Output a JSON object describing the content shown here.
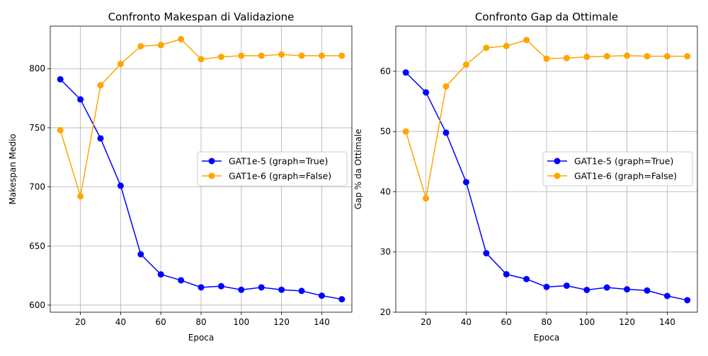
{
  "chart_data": [
    {
      "type": "line",
      "title": "Confronto Makespan di Validazione",
      "xlabel": "Epoca",
      "ylabel": "Makespan Medio",
      "x": [
        10,
        20,
        30,
        40,
        50,
        60,
        70,
        80,
        90,
        100,
        110,
        120,
        130,
        140,
        150
      ],
      "xlim": [
        5,
        155
      ],
      "ylim": [
        594,
        836
      ],
      "xticks": [
        20,
        40,
        60,
        80,
        100,
        120,
        140
      ],
      "yticks": [
        600,
        650,
        700,
        750,
        800
      ],
      "grid": true,
      "legend_position": "center-right",
      "series": [
        {
          "name": "GAT1e-5 (graph=True)",
          "color": "#0000ff",
          "values": [
            791,
            774,
            741,
            701,
            643,
            626,
            621,
            615,
            616,
            613,
            615,
            613,
            612,
            608,
            605
          ]
        },
        {
          "name": "GAT1e-6 (graph=False)",
          "color": "#ffa500",
          "values": [
            748,
            692,
            786,
            804,
            819,
            820,
            825,
            808,
            810,
            811,
            811,
            812,
            811,
            811,
            811
          ]
        }
      ]
    },
    {
      "type": "line",
      "title": "Confronto Gap da Ottimale",
      "xlabel": "Epoca",
      "ylabel": "Gap % da Ottimale",
      "x": [
        10,
        20,
        30,
        40,
        50,
        60,
        70,
        80,
        90,
        100,
        110,
        120,
        130,
        140,
        150
      ],
      "xlim": [
        5,
        155
      ],
      "ylim": [
        20,
        67.5
      ],
      "xticks": [
        20,
        40,
        60,
        80,
        100,
        120,
        140
      ],
      "yticks": [
        20,
        30,
        40,
        50,
        60
      ],
      "grid": true,
      "legend_position": "center-right",
      "series": [
        {
          "name": "GAT1e-5 (graph=True)",
          "color": "#0000ff",
          "values": [
            59.8,
            56.5,
            49.8,
            41.6,
            29.8,
            26.3,
            25.5,
            24.2,
            24.4,
            23.7,
            24.1,
            23.8,
            23.6,
            22.7,
            22.0
          ]
        },
        {
          "name": "GAT1e-6 (graph=False)",
          "color": "#ffa500",
          "values": [
            50.0,
            38.9,
            57.5,
            61.1,
            63.9,
            64.2,
            65.2,
            62.1,
            62.2,
            62.4,
            62.5,
            62.6,
            62.5,
            62.5,
            62.5
          ]
        }
      ]
    }
  ]
}
